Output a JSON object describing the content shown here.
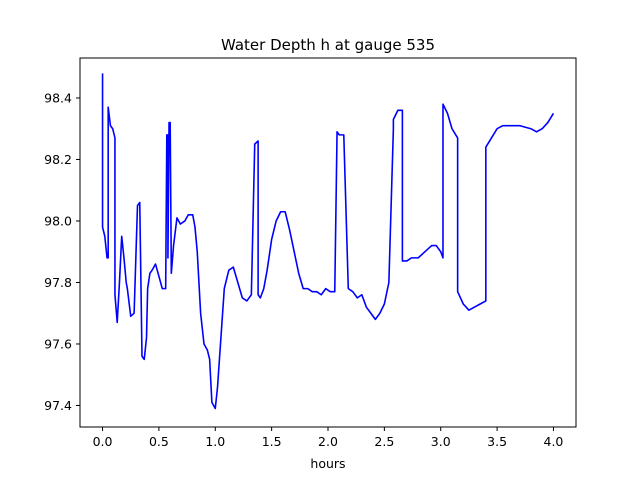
{
  "chart_data": {
    "type": "line",
    "title": "Water Depth h at gauge 535",
    "xlabel": "hours",
    "ylabel": "",
    "xlim": [
      -0.2,
      4.2
    ],
    "ylim": [
      97.33,
      98.53
    ],
    "xticks": [
      0.0,
      0.5,
      1.0,
      1.5,
      2.0,
      2.5,
      3.0,
      3.5,
      4.0
    ],
    "xtick_labels": [
      "0.0",
      "0.5",
      "1.0",
      "1.5",
      "2.0",
      "2.5",
      "3.0",
      "3.5",
      "4.0"
    ],
    "yticks": [
      97.4,
      97.6,
      97.8,
      98.0,
      98.2,
      98.4
    ],
    "ytick_labels": [
      "97.4",
      "97.6",
      "97.8",
      "98.0",
      "98.2",
      "98.4"
    ],
    "grid": false,
    "legend": "none",
    "series": [
      {
        "color": "#0000ff",
        "x": [
          0.0,
          0.0,
          0.02,
          0.04,
          0.05,
          0.05,
          0.06,
          0.07,
          0.09,
          0.11,
          0.11,
          0.13,
          0.15,
          0.17,
          0.19,
          0.21,
          0.22,
          0.25,
          0.28,
          0.31,
          0.33,
          0.35,
          0.37,
          0.39,
          0.4,
          0.42,
          0.44,
          0.47,
          0.5,
          0.53,
          0.56,
          0.57,
          0.58,
          0.58,
          0.59,
          0.6,
          0.61,
          0.61,
          0.63,
          0.66,
          0.69,
          0.73,
          0.76,
          0.8,
          0.82,
          0.84,
          0.87,
          0.9,
          0.93,
          0.95,
          0.97,
          1.0,
          1.02,
          1.05,
          1.08,
          1.12,
          1.16,
          1.2,
          1.24,
          1.28,
          1.32,
          1.35,
          1.38,
          1.38,
          1.4,
          1.41,
          1.41,
          1.43,
          1.46,
          1.5,
          1.54,
          1.58,
          1.62,
          1.66,
          1.7,
          1.74,
          1.78,
          1.82,
          1.86,
          1.9,
          1.94,
          1.98,
          2.02,
          2.06,
          2.08,
          2.08,
          2.1,
          2.14,
          2.18,
          2.18,
          2.22,
          2.26,
          2.3,
          2.34,
          2.38,
          2.42,
          2.46,
          2.5,
          2.54,
          2.58,
          2.58,
          2.62,
          2.66,
          2.66,
          2.7,
          2.74,
          2.8,
          2.86,
          2.92,
          2.96,
          3.0,
          3.02,
          3.02,
          3.06,
          3.1,
          3.15,
          3.15,
          3.2,
          3.25,
          3.3,
          3.35,
          3.4,
          3.4,
          3.45,
          3.5,
          3.55,
          3.6,
          3.7,
          3.8,
          3.85,
          3.9,
          3.95,
          4.0
        ],
        "y": [
          98.48,
          97.98,
          97.95,
          97.88,
          97.88,
          98.37,
          98.34,
          98.31,
          98.3,
          98.27,
          97.76,
          97.67,
          97.8,
          97.95,
          97.88,
          97.8,
          97.78,
          97.69,
          97.7,
          98.05,
          98.06,
          97.56,
          97.55,
          97.62,
          97.78,
          97.83,
          97.84,
          97.86,
          97.82,
          97.78,
          97.78,
          98.28,
          98.28,
          97.88,
          98.32,
          98.32,
          97.83,
          97.83,
          97.92,
          98.01,
          97.99,
          98.0,
          98.02,
          98.02,
          97.98,
          97.9,
          97.7,
          97.6,
          97.58,
          97.55,
          97.41,
          97.39,
          97.46,
          97.62,
          97.78,
          97.84,
          97.85,
          97.8,
          97.75,
          97.74,
          97.76,
          98.25,
          98.26,
          97.76,
          97.75,
          97.76,
          97.76,
          97.78,
          97.84,
          97.94,
          98.0,
          98.03,
          98.03,
          97.97,
          97.9,
          97.83,
          97.78,
          97.78,
          97.77,
          97.77,
          97.76,
          97.78,
          97.77,
          97.77,
          98.28,
          98.29,
          98.28,
          98.28,
          97.78,
          97.78,
          97.77,
          97.75,
          97.76,
          97.72,
          97.7,
          97.68,
          97.7,
          97.73,
          97.8,
          98.3,
          98.33,
          98.36,
          98.36,
          97.87,
          97.87,
          97.88,
          97.88,
          97.9,
          97.92,
          97.92,
          97.9,
          97.88,
          98.38,
          98.35,
          98.3,
          98.27,
          97.77,
          97.73,
          97.71,
          97.72,
          97.73,
          97.74,
          98.24,
          98.27,
          98.3,
          98.31,
          98.31,
          98.31,
          98.3,
          98.29,
          98.3,
          98.32,
          98.35
        ]
      }
    ]
  }
}
